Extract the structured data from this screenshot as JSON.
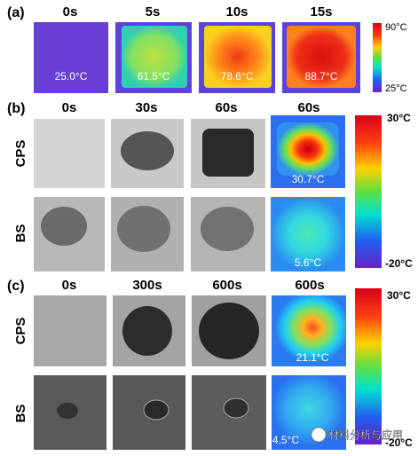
{
  "panels": [
    {
      "label": "(a)",
      "times": [
        "0s",
        "5s",
        "10s",
        "15s"
      ],
      "temperatures": [
        "25.0°C",
        "61.5°C",
        "78.6°C",
        "88.7°C"
      ],
      "colorbar": {
        "max": "90°C",
        "min": "25°C"
      }
    },
    {
      "label": "(b)",
      "times": [
        "0s",
        "30s",
        "60s",
        "60s"
      ],
      "rows": [
        "CPS",
        "BS"
      ],
      "temperatures": [
        "30.7°C",
        "5.6°C"
      ],
      "colorbar": {
        "max": "30°C",
        "min": "-20°C"
      }
    },
    {
      "label": "(c)",
      "times": [
        "0s",
        "300s",
        "600s",
        "600s"
      ],
      "rows": [
        "CPS",
        "BS"
      ],
      "temperatures": [
        "21.1°C",
        "4.5°C"
      ],
      "colorbar": {
        "max": "30°C",
        "min": "-20°C"
      }
    }
  ],
  "watermark": "材料分析与应用"
}
